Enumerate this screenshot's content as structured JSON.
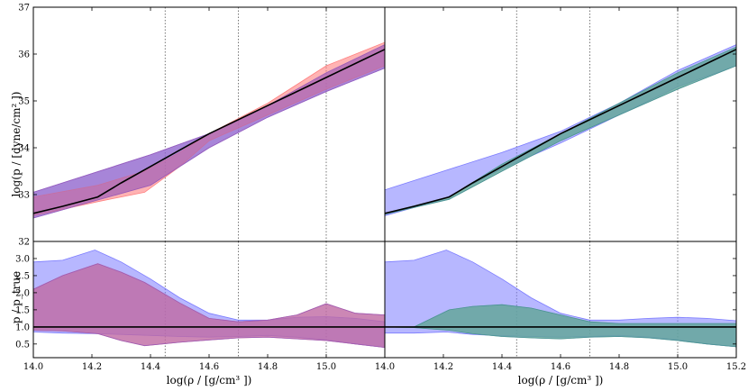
{
  "chart_data": {
    "type": "area",
    "xlabel": "log(ρ / [g/cm³ ])",
    "ylabel_top": "log(p / [dyne/cm² ])",
    "ylabel_bottom": "p / p_true",
    "top_ylim": [
      32,
      37
    ],
    "top_yticks": [
      "32",
      "33",
      "34",
      "35",
      "36",
      "37"
    ],
    "bottom_ylim": [
      0.1,
      3.5
    ],
    "bottom_yticks": [
      "0.5",
      "1.0",
      "1.5",
      "2.0",
      "2.5",
      "3.0"
    ],
    "left_xticks": [
      "14.0",
      "14.2",
      "14.4",
      "14.6",
      "14.8",
      "15.0"
    ],
    "right_xticks": [
      "14.0",
      "14.2",
      "14.4",
      "14.6",
      "14.8",
      "15.0",
      "15.2"
    ],
    "xlim": [
      14.0,
      15.2
    ],
    "vlines": [
      14.45,
      14.7,
      15.0
    ],
    "colors": {
      "blue": "#7b7bff",
      "red": "#ff8080",
      "purple": "#9a5cb8",
      "green": "#8fd48f",
      "teal": "#4a8f9a",
      "line": "#000000"
    },
    "true_curve": {
      "x": [
        14.0,
        14.1,
        14.22,
        14.3,
        14.4,
        14.5,
        14.6,
        14.7,
        14.8,
        14.9,
        15.0,
        15.1,
        15.2
      ],
      "y": [
        32.6,
        32.75,
        32.95,
        33.25,
        33.6,
        33.95,
        34.3,
        34.6,
        34.9,
        35.2,
        35.5,
        35.8,
        36.1
      ]
    },
    "top_left_blue": {
      "x": [
        14.0,
        14.2,
        14.4,
        14.6,
        14.8,
        15.0,
        15.2
      ],
      "upper": [
        33.05,
        33.45,
        33.85,
        34.3,
        34.9,
        35.6,
        36.2
      ],
      "lower": [
        32.5,
        32.85,
        33.2,
        34.0,
        34.65,
        35.2,
        35.7
      ]
    },
    "top_left_red": {
      "x": [
        14.0,
        14.22,
        14.38,
        14.5,
        14.6,
        14.8,
        15.0,
        15.2
      ],
      "upper": [
        32.95,
        33.2,
        33.5,
        33.9,
        34.3,
        34.95,
        35.75,
        36.25
      ],
      "lower": [
        32.55,
        32.85,
        33.05,
        33.6,
        34.15,
        34.7,
        35.25,
        35.75
      ]
    },
    "top_right_blue": {
      "x": [
        14.0,
        14.2,
        14.4,
        14.6,
        14.8,
        15.0,
        15.2
      ],
      "upper": [
        33.1,
        33.5,
        33.9,
        34.35,
        34.95,
        35.65,
        36.2
      ],
      "lower": [
        32.55,
        32.9,
        33.55,
        34.1,
        34.7,
        35.3,
        35.75
      ]
    },
    "top_right_green": {
      "x": [
        14.0,
        14.22,
        14.4,
        14.6,
        14.8,
        15.0,
        15.2
      ],
      "upper": [
        32.6,
        32.95,
        33.65,
        34.3,
        34.95,
        35.6,
        36.15
      ],
      "lower": [
        32.58,
        32.9,
        33.5,
        34.15,
        34.7,
        35.25,
        35.75
      ]
    },
    "bottom_left_blue": {
      "x": [
        14.0,
        14.1,
        14.21,
        14.3,
        14.4,
        14.5,
        14.6,
        14.7,
        14.8,
        14.9,
        15.0,
        15.1,
        15.2
      ],
      "upper": [
        2.9,
        2.95,
        3.25,
        2.9,
        2.4,
        1.85,
        1.4,
        1.2,
        1.2,
        1.28,
        1.3,
        1.25,
        1.15
      ],
      "lower": [
        0.85,
        0.82,
        0.8,
        0.78,
        0.75,
        0.72,
        0.7,
        0.72,
        0.75,
        0.7,
        0.62,
        0.5,
        0.4
      ]
    },
    "bottom_left_red": {
      "x": [
        14.0,
        14.1,
        14.22,
        14.3,
        14.38,
        14.5,
        14.6,
        14.7,
        14.8,
        14.9,
        15.0,
        15.1,
        15.2
      ],
      "upper": [
        2.1,
        2.5,
        2.85,
        2.6,
        2.3,
        1.7,
        1.25,
        1.15,
        1.2,
        1.35,
        1.68,
        1.4,
        1.35
      ],
      "lower": [
        0.9,
        0.88,
        0.8,
        0.6,
        0.45,
        0.55,
        0.62,
        0.68,
        0.7,
        0.65,
        0.6,
        0.5,
        0.4
      ]
    },
    "bottom_right_blue": {
      "x": [
        14.0,
        14.1,
        14.21,
        14.3,
        14.4,
        14.5,
        14.6,
        14.7,
        14.8,
        14.9,
        15.0,
        15.1,
        15.2
      ],
      "upper": [
        2.9,
        2.95,
        3.25,
        2.9,
        2.4,
        1.85,
        1.4,
        1.2,
        1.2,
        1.25,
        1.28,
        1.25,
        1.18
      ],
      "lower": [
        0.82,
        0.82,
        0.85,
        0.78,
        0.74,
        0.72,
        0.7,
        0.72,
        0.75,
        0.7,
        0.62,
        0.5,
        0.42
      ]
    },
    "bottom_right_green": {
      "x": [
        14.0,
        14.1,
        14.22,
        14.3,
        14.4,
        14.5,
        14.6,
        14.7,
        14.8,
        14.9,
        15.0,
        15.1,
        15.2
      ],
      "upper": [
        1.0,
        1.0,
        1.5,
        1.6,
        1.65,
        1.55,
        1.35,
        1.15,
        1.1,
        1.1,
        1.1,
        1.1,
        1.1
      ],
      "lower": [
        1.0,
        0.98,
        0.9,
        0.8,
        0.72,
        0.68,
        0.65,
        0.7,
        0.72,
        0.68,
        0.6,
        0.5,
        0.42
      ]
    }
  }
}
